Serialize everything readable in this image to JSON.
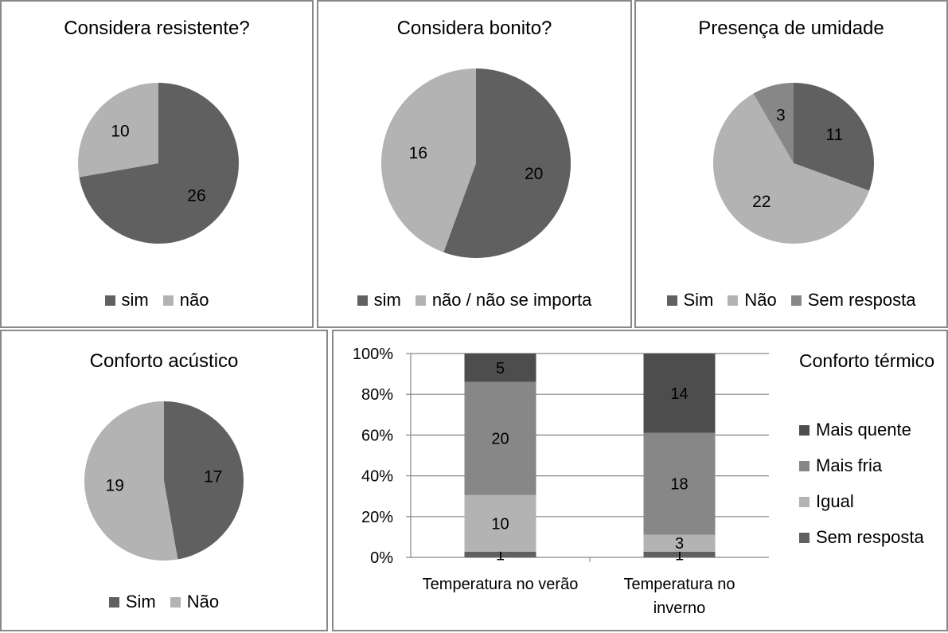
{
  "colors": {
    "dark": "#606060",
    "light": "#b3b3b3",
    "mid": "#878787",
    "darker": "#4d4d4d",
    "grid": "#868686"
  },
  "chart_data": [
    {
      "type": "pie",
      "title": "Considera resistente?",
      "slices": [
        {
          "label": "sim",
          "value": 26,
          "color": "#606060"
        },
        {
          "label": "não",
          "value": 10,
          "color": "#b3b3b3"
        }
      ]
    },
    {
      "type": "pie",
      "title": "Considera bonito?",
      "slices": [
        {
          "label": "sim",
          "value": 20,
          "color": "#606060"
        },
        {
          "label": "não / não se importa",
          "value": 16,
          "color": "#b3b3b3"
        }
      ]
    },
    {
      "type": "pie",
      "title": "Presença de umidade",
      "slices": [
        {
          "label": "Sim",
          "value": 11,
          "color": "#606060"
        },
        {
          "label": "Não",
          "value": 22,
          "color": "#b3b3b3"
        },
        {
          "label": "Sem resposta",
          "value": 3,
          "color": "#878787"
        }
      ]
    },
    {
      "type": "pie",
      "title": "Conforto acústico",
      "slices": [
        {
          "label": "Sim",
          "value": 17,
          "color": "#606060"
        },
        {
          "label": "Não",
          "value": 19,
          "color": "#b3b3b3"
        }
      ]
    },
    {
      "type": "bar",
      "stacked": "percent",
      "title": "Conforto térmico",
      "categories": [
        "Temperatura no verão",
        "Temperatura no inverno"
      ],
      "series": [
        {
          "name": "Sem resposta",
          "values": [
            1,
            1
          ],
          "color": "#606060"
        },
        {
          "name": "Igual",
          "values": [
            10,
            3
          ],
          "color": "#b3b3b3"
        },
        {
          "name": "Mais fria",
          "values": [
            20,
            18
          ],
          "color": "#878787"
        },
        {
          "name": "Mais quente",
          "values": [
            5,
            14
          ],
          "color": "#4d4d4d"
        }
      ],
      "yticks": [
        "0%",
        "20%",
        "40%",
        "60%",
        "80%",
        "100%"
      ],
      "legend_order": [
        "Mais quente",
        "Mais fria",
        "Igual",
        "Sem resposta"
      ],
      "legend_position": "right",
      "grid": true
    }
  ]
}
